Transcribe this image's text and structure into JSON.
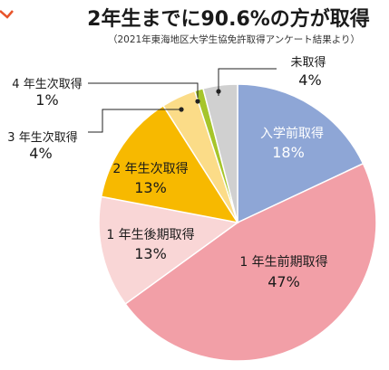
{
  "chart_data": {
    "type": "pie",
    "title": "2年生までに90.6%の方が取得",
    "subtitle": "（2021年東海地区大学生協免許取得アンケート結果より）",
    "slices": [
      {
        "label": "入学前取得",
        "value_label": "18%",
        "value": 18,
        "color": "#8ea6d6"
      },
      {
        "label": "1 年生前期取得",
        "value_label": "47%",
        "value": 47,
        "color": "#f29fa7"
      },
      {
        "label": "1 年生後期取得",
        "value_label": "13%",
        "value": 13,
        "color": "#f9d6d6"
      },
      {
        "label": "2 年生次取得",
        "value_label": "13%",
        "value": 13,
        "color": "#f7b900"
      },
      {
        "label": "3 年生次取得",
        "value_label": "4%",
        "value": 4,
        "color": "#fbdc88"
      },
      {
        "label": "4 年生次取得",
        "value_label": "1%",
        "value": 1,
        "color": "#a6c52a"
      },
      {
        "label": "未取得",
        "value_label": "4%",
        "value": 4,
        "color": "#d0d0d0"
      }
    ],
    "legend": "none",
    "grid": false
  },
  "accent_color": "#e8542a"
}
